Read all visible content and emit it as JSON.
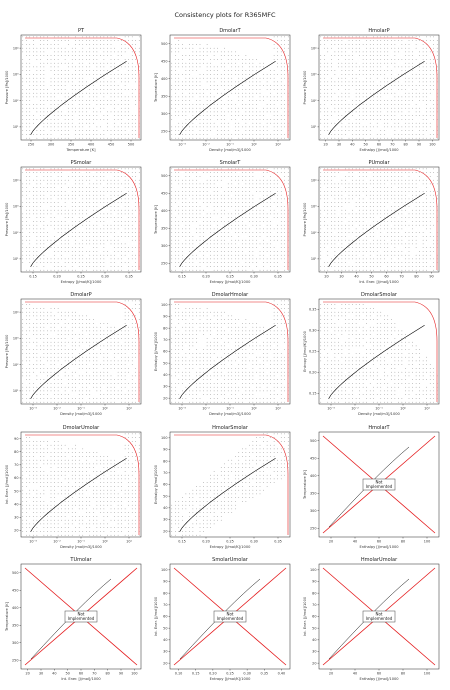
{
  "suptitle": "Consistency plots for R365MFC",
  "colors": {
    "grid_points": "#000000",
    "saturation": "#000000",
    "limit": "#e41a1c",
    "not_impl_x": "#e41a1c"
  },
  "chart_data": [
    {
      "type": "scatter",
      "title": "PT",
      "xlabel": "Temperature [K]",
      "ylabel": "Pressure [Pa]/1000",
      "xlim": [
        225,
        510
      ],
      "ylim": [
        1.5,
        50000
      ],
      "yscale": "log",
      "xticks": [
        "250",
        "300",
        "350",
        "400",
        "450",
        "500"
      ],
      "yticks": [
        "10¹",
        "10²",
        "10³",
        "10⁴"
      ],
      "not_implemented": false
    },
    {
      "type": "scatter",
      "title": "DmolarT",
      "xlabel": "Density [mol/m3]/1000",
      "ylabel": "Temperature [K]",
      "xlim": [
        0.0003,
        12
      ],
      "ylim": [
        230,
        505
      ],
      "xscale": "log",
      "xticks": [
        "10⁻³",
        "10⁻²",
        "10⁻¹",
        "10⁰",
        "10¹"
      ],
      "yticks": [
        "250",
        "300",
        "350",
        "400",
        "450",
        "500"
      ],
      "not_implemented": false
    },
    {
      "type": "scatter",
      "title": "HmolarP",
      "xlabel": "Enthalpy [J/mol]/1000",
      "ylabel": "Pressure [Pa]/1000",
      "xlim": [
        18,
        102
      ],
      "ylim": [
        1.5,
        50000
      ],
      "yscale": "log",
      "xticks": [
        "20",
        "30",
        "40",
        "50",
        "60",
        "70",
        "80",
        "90",
        "100"
      ],
      "yticks": [
        "10¹",
        "10²",
        "10³",
        "10⁴"
      ],
      "not_implemented": false
    },
    {
      "type": "scatter",
      "title": "PSmolar",
      "xlabel": "Entropy [J/mol/K]/1000",
      "ylabel": "Pressure [Pa]/1000",
      "xlim": [
        0.12,
        0.38
      ],
      "ylim": [
        1.5,
        50000
      ],
      "yscale": "log",
      "xticks": [
        "0.15",
        "0.20",
        "0.25",
        "0.30",
        "0.35"
      ],
      "yticks": [
        "10¹",
        "10²",
        "10³",
        "10⁴"
      ],
      "not_implemented": false
    },
    {
      "type": "scatter",
      "title": "SmolarT",
      "xlabel": "Entropy [J/mol/K]/1000",
      "ylabel": "Temperature [K]",
      "xlim": [
        0.12,
        0.38
      ],
      "ylim": [
        230,
        505
      ],
      "xticks": [
        "0.15",
        "0.20",
        "0.25",
        "0.30",
        "0.35"
      ],
      "yticks": [
        "250",
        "300",
        "350",
        "400",
        "450",
        "500"
      ],
      "not_implemented": false
    },
    {
      "type": "scatter",
      "title": "PUmolar",
      "xlabel": "Int. Ener. [J/mol]/1000",
      "ylabel": "Pressure [Pa]/1000",
      "xlim": [
        18,
        92
      ],
      "ylim": [
        1.5,
        50000
      ],
      "yscale": "log",
      "xticks": [
        "20",
        "30",
        "40",
        "50",
        "60",
        "70",
        "80",
        "90"
      ],
      "yticks": [
        "10¹",
        "10²",
        "10³",
        "10⁴"
      ],
      "not_implemented": false
    },
    {
      "type": "scatter",
      "title": "DmolarP",
      "xlabel": "Density [mol/m3]/1000",
      "ylabel": "Pressure [Pa]/1000",
      "xlim": [
        0.0003,
        12
      ],
      "ylim": [
        1.5,
        50000
      ],
      "xscale": "log",
      "yscale": "log",
      "xticks": [
        "10⁻³",
        "10⁻²",
        "10⁻¹",
        "10⁰",
        "10¹"
      ],
      "yticks": [
        "10¹",
        "10²",
        "10³",
        "10⁴"
      ],
      "not_implemented": false
    },
    {
      "type": "scatter",
      "title": "DmolarHmolar",
      "xlabel": "Density [mol/m3]/1000",
      "ylabel": "Enthalpy [J/mol]/1000",
      "xlim": [
        0.0003,
        12
      ],
      "ylim": [
        18,
        102
      ],
      "xscale": "log",
      "xticks": [
        "10⁻³",
        "10⁻²",
        "10⁻¹",
        "10⁰",
        "10¹"
      ],
      "yticks": [
        "20",
        "30",
        "40",
        "50",
        "60",
        "70",
        "80",
        "90",
        "100"
      ],
      "not_implemented": false
    },
    {
      "type": "scatter",
      "title": "DmolarSmolar",
      "xlabel": "Density [mol/m3]/1000",
      "ylabel": "Entropy [J/mol/K]/1000",
      "xlim": [
        0.0003,
        12
      ],
      "ylim": [
        0.12,
        0.39
      ],
      "xscale": "log",
      "xticks": [
        "10⁻³",
        "10⁻²",
        "10⁻¹",
        "10⁰",
        "10¹"
      ],
      "yticks": [
        "0.15",
        "0.20",
        "0.25",
        "0.30",
        "0.35"
      ],
      "not_implemented": false
    },
    {
      "type": "scatter",
      "title": "DmolarUmolar",
      "xlabel": "Density [mol/m3]/1000",
      "ylabel": "Int. Ener. [J/mol]/1000",
      "xlim": [
        0.0003,
        12
      ],
      "ylim": [
        18,
        97
      ],
      "xscale": "log",
      "xticks": [
        "10⁻³",
        "10⁻²",
        "10⁻¹",
        "10⁰",
        "10¹"
      ],
      "yticks": [
        "20",
        "30",
        "40",
        "50",
        "60",
        "70",
        "80",
        "90"
      ],
      "not_implemented": false
    },
    {
      "type": "scatter",
      "title": "HmolarSmolar",
      "xlabel": "Entropy [J/mol/K]/1000",
      "ylabel": "Enthalpy [J/mol]/1000",
      "xlim": [
        0.12,
        0.38
      ],
      "ylim": [
        18,
        102
      ],
      "xticks": [
        "0.15",
        "0.20",
        "0.25",
        "0.30",
        "0.35"
      ],
      "yticks": [
        "20",
        "30",
        "40",
        "50",
        "60",
        "70",
        "80",
        "90",
        "100"
      ],
      "not_implemented": false
    },
    {
      "type": "scatter",
      "title": "HmolarT",
      "xlabel": "Enthalpy [J/mol]/1000",
      "ylabel": "Temperature [K]",
      "xlim": [
        18,
        104
      ],
      "ylim": [
        230,
        530
      ],
      "xticks": [
        "20",
        "40",
        "60",
        "80",
        "100"
      ],
      "yticks": [
        "250",
        "300",
        "350",
        "400",
        "450",
        "500"
      ],
      "not_implemented": true,
      "not_implemented_text": [
        "Not",
        "Implemented"
      ]
    },
    {
      "type": "scatter",
      "title": "TUmolar",
      "xlabel": "Int. Ener. [J/mol]/1000",
      "ylabel": "Temperature [K]",
      "xlim": [
        18,
        102
      ],
      "ylim": [
        230,
        530
      ],
      "xticks": [
        "20",
        "30",
        "40",
        "50",
        "60",
        "70",
        "80",
        "90",
        "100"
      ],
      "yticks": [
        "250",
        "300",
        "350",
        "400",
        "450",
        "500"
      ],
      "not_implemented": true,
      "not_implemented_text": [
        "Not",
        "Implemented"
      ]
    },
    {
      "type": "scatter",
      "title": "SmolarUmolar",
      "xlabel": "Entropy [J/mol/K]/1000",
      "ylabel": "Int. Ener. [J/mol]/1000",
      "xlim": [
        0.1,
        0.4
      ],
      "ylim": [
        18,
        102
      ],
      "xticks": [
        "0.10",
        "0.15",
        "0.20",
        "0.25",
        "0.30",
        "0.35",
        "0.40"
      ],
      "yticks": [
        "20",
        "30",
        "40",
        "50",
        "60",
        "70",
        "80",
        "90",
        "100"
      ],
      "not_implemented": true,
      "not_implemented_text": [
        "Not",
        "Implemented"
      ]
    },
    {
      "type": "scatter",
      "title": "HmolarUmolar",
      "xlabel": "Enthalpy [J/mol]/1000",
      "ylabel": "Int. Ener. [J/mol]/1000",
      "xlim": [
        18,
        104
      ],
      "ylim": [
        18,
        102
      ],
      "xticks": [
        "20",
        "40",
        "60",
        "80",
        "100"
      ],
      "yticks": [
        "20",
        "30",
        "40",
        "50",
        "60",
        "70",
        "80",
        "90",
        "100"
      ],
      "not_implemented": true,
      "not_implemented_text": [
        "Not",
        "Implemented"
      ]
    }
  ]
}
